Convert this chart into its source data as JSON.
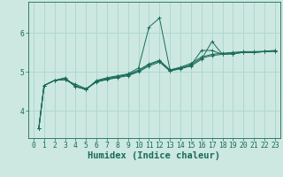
{
  "bg_color": "#cce8e0",
  "grid_color": "#b0d8cf",
  "line_color": "#1a6b5a",
  "xlabel": "Humidex (Indice chaleur)",
  "xlabel_fontsize": 7.5,
  "tick_fontsize": 5.8,
  "ylim": [
    3.3,
    6.8
  ],
  "xlim": [
    -0.5,
    23.5
  ],
  "yticks": [
    4,
    5,
    6
  ],
  "xticks": [
    0,
    1,
    2,
    3,
    4,
    5,
    6,
    7,
    8,
    9,
    10,
    11,
    12,
    13,
    14,
    15,
    16,
    17,
    18,
    19,
    20,
    21,
    22,
    23
  ],
  "lines": [
    [
      0.5,
      3.55,
      1,
      4.65,
      2,
      4.78,
      3,
      4.85,
      4,
      4.62,
      5,
      4.55,
      6,
      4.78,
      7,
      4.85,
      8,
      4.9,
      9,
      4.95,
      10,
      5.1,
      11,
      6.15,
      12,
      6.38,
      13,
      5.05,
      14,
      5.12,
      15,
      5.22,
      16,
      5.38,
      17,
      5.45,
      18,
      5.48,
      19,
      5.5,
      20,
      5.52,
      21,
      5.52,
      22,
      5.53,
      23,
      5.55
    ],
    [
      0.5,
      3.55,
      1,
      4.65,
      2,
      4.78,
      3,
      4.83,
      4,
      4.62,
      5,
      4.55,
      6,
      4.76,
      7,
      4.83,
      8,
      4.88,
      9,
      4.93,
      10,
      5.05,
      11,
      5.2,
      12,
      5.3,
      13,
      5.05,
      14,
      5.1,
      15,
      5.18,
      16,
      5.35,
      17,
      5.42,
      18,
      5.45,
      19,
      5.47,
      20,
      5.5,
      21,
      5.5,
      22,
      5.52,
      23,
      5.54
    ],
    [
      0.5,
      3.55,
      1,
      4.65,
      2,
      4.78,
      3,
      4.8,
      4,
      4.68,
      5,
      4.57,
      6,
      4.74,
      7,
      4.8,
      8,
      4.85,
      9,
      4.9,
      10,
      5.0,
      11,
      5.15,
      12,
      5.25,
      13,
      5.02,
      14,
      5.08,
      15,
      5.15,
      16,
      5.32,
      17,
      5.78,
      18,
      5.45,
      19,
      5.47,
      20,
      5.5,
      21,
      5.5,
      22,
      5.52,
      23,
      5.53
    ],
    [
      0.5,
      3.55,
      1,
      4.65,
      2,
      4.78,
      3,
      4.8,
      4,
      4.65,
      5,
      4.55,
      6,
      4.75,
      7,
      4.82,
      8,
      4.87,
      9,
      4.92,
      10,
      5.02,
      11,
      5.18,
      12,
      5.28,
      13,
      5.03,
      14,
      5.09,
      15,
      5.17,
      16,
      5.55,
      17,
      5.55,
      18,
      5.45,
      19,
      5.47,
      20,
      5.5,
      21,
      5.5,
      22,
      5.52,
      23,
      5.53
    ]
  ]
}
